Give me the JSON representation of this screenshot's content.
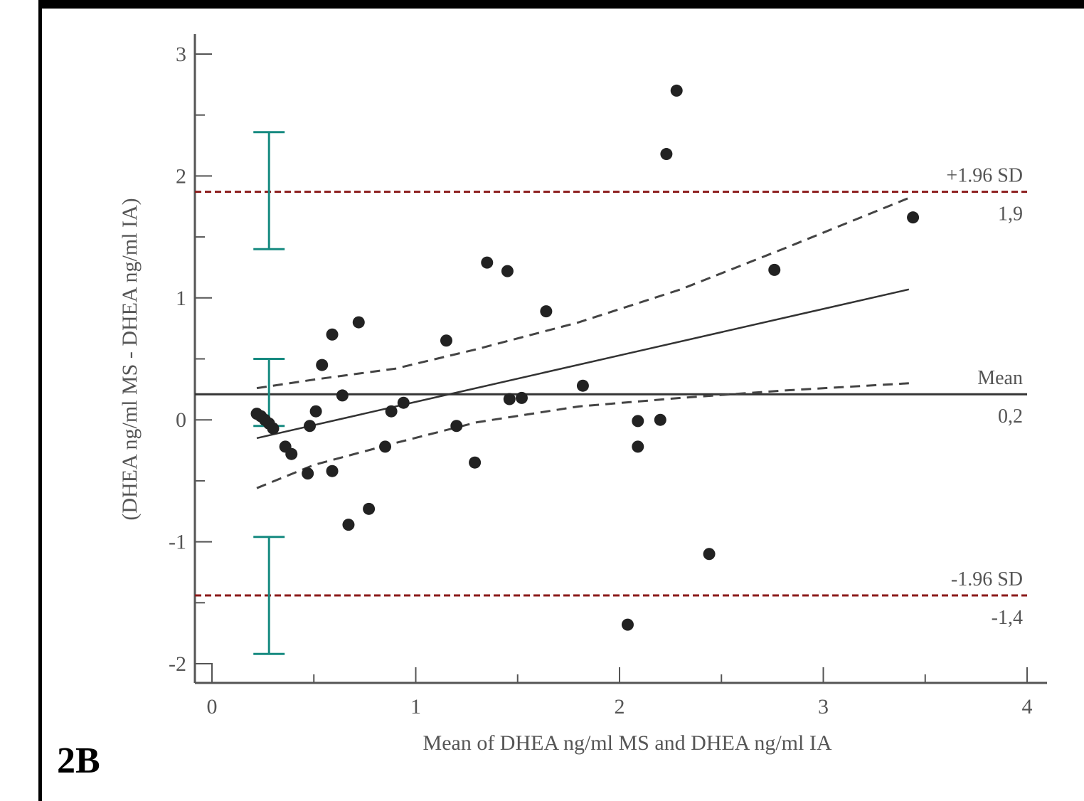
{
  "panel_label": "2B",
  "chart_data": {
    "type": "scatter",
    "title": "",
    "xlabel": "Mean of DHEA ng/ml MS and DHEA ng/ml IA",
    "ylabel": "(DHEA ng/ml MS - DHEA ng/ml IA)",
    "xlim": [
      0,
      4
    ],
    "ylim": [
      -2,
      3
    ],
    "x_ticks": [
      0,
      1,
      2,
      3,
      4
    ],
    "x_tick_labels": [
      "0",
      "1",
      "2",
      "3",
      "4"
    ],
    "y_ticks": [
      -2,
      -1,
      0,
      1,
      2,
      3
    ],
    "y_tick_labels": [
      "-2",
      "-1",
      "0",
      "1",
      "2",
      "3"
    ],
    "grid": false,
    "points": [
      {
        "x": 0.22,
        "y": 0.05
      },
      {
        "x": 0.24,
        "y": 0.03
      },
      {
        "x": 0.26,
        "y": 0.0
      },
      {
        "x": 0.28,
        "y": -0.03
      },
      {
        "x": 0.3,
        "y": -0.07
      },
      {
        "x": 0.36,
        "y": -0.22
      },
      {
        "x": 0.39,
        "y": -0.28
      },
      {
        "x": 0.47,
        "y": -0.44
      },
      {
        "x": 0.48,
        "y": -0.05
      },
      {
        "x": 0.51,
        "y": 0.07
      },
      {
        "x": 0.54,
        "y": 0.45
      },
      {
        "x": 0.59,
        "y": 0.7
      },
      {
        "x": 0.59,
        "y": -0.42
      },
      {
        "x": 0.64,
        "y": 0.2
      },
      {
        "x": 0.67,
        "y": -0.86
      },
      {
        "x": 0.72,
        "y": 0.8
      },
      {
        "x": 0.77,
        "y": -0.73
      },
      {
        "x": 0.85,
        "y": -0.22
      },
      {
        "x": 0.88,
        "y": 0.07
      },
      {
        "x": 0.94,
        "y": 0.14
      },
      {
        "x": 1.15,
        "y": 0.65
      },
      {
        "x": 1.2,
        "y": -0.05
      },
      {
        "x": 1.29,
        "y": -0.35
      },
      {
        "x": 1.35,
        "y": 1.29
      },
      {
        "x": 1.45,
        "y": 1.22
      },
      {
        "x": 1.46,
        "y": 0.17
      },
      {
        "x": 1.52,
        "y": 0.18
      },
      {
        "x": 1.64,
        "y": 0.89
      },
      {
        "x": 1.82,
        "y": 0.28
      },
      {
        "x": 2.04,
        "y": -1.68
      },
      {
        "x": 2.09,
        "y": -0.01
      },
      {
        "x": 2.09,
        "y": -0.22
      },
      {
        "x": 2.2,
        "y": 0.0
      },
      {
        "x": 2.23,
        "y": 2.18
      },
      {
        "x": 2.28,
        "y": 2.7
      },
      {
        "x": 2.44,
        "y": -1.1
      },
      {
        "x": 2.76,
        "y": 1.23
      },
      {
        "x": 3.44,
        "y": 1.66
      }
    ],
    "reference_lines": [
      {
        "name": "+1.96 SD",
        "value": 1.87,
        "value_label": "1,9",
        "style": "dashed",
        "color": "#8b1a1a"
      },
      {
        "name": "Mean",
        "value": 0.21,
        "value_label": "0,2",
        "style": "solid",
        "color": "#333333"
      },
      {
        "name": "-1.96 SD",
        "value": -1.44,
        "value_label": "-1,4",
        "style": "dashed",
        "color": "#8b1a1a"
      }
    ],
    "regression": {
      "x": [
        0.22,
        3.42
      ],
      "y": [
        -0.15,
        1.07
      ]
    },
    "confidence_band": {
      "x": [
        0.22,
        0.5,
        0.9,
        1.3,
        1.8,
        2.3,
        2.8,
        3.42
      ],
      "upper": [
        0.26,
        0.33,
        0.42,
        0.58,
        0.8,
        1.07,
        1.4,
        1.82
      ],
      "lower": [
        -0.56,
        -0.37,
        -0.19,
        -0.02,
        0.11,
        0.18,
        0.24,
        0.3
      ]
    },
    "error_bars": [
      {
        "x": 0.28,
        "low": 1.4,
        "high": 2.36
      },
      {
        "x": 0.28,
        "low": -0.05,
        "high": 0.5
      },
      {
        "x": 0.28,
        "low": -1.92,
        "high": -0.96
      }
    ],
    "colors": {
      "points": "#222222",
      "limit_lines": "#8b1a1a",
      "mean_line": "#333333",
      "error_bars": "#168a80",
      "axes": "#555555",
      "text": "#555555"
    }
  }
}
